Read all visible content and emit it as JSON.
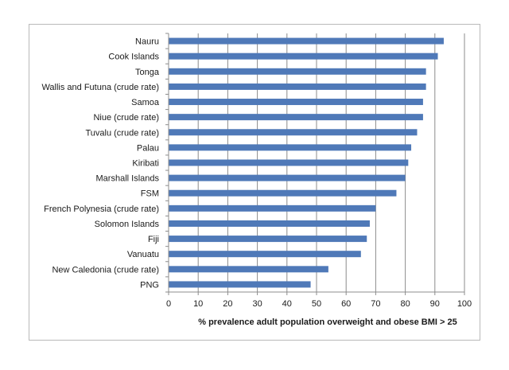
{
  "chart_data": {
    "type": "bar",
    "orientation": "horizontal",
    "categories": [
      "Nauru",
      "Cook Islands",
      "Tonga",
      "Wallis and Futuna (crude rate)",
      "Samoa",
      "Niue (crude rate)",
      "Tuvalu (crude rate)",
      "Palau",
      "Kiribati",
      "Marshall Islands",
      "FSM",
      "French Polynesia (crude rate)",
      "Solomon Islands",
      "Fiji",
      "Vanuatu",
      "New Caledonia (crude rate)",
      "PNG"
    ],
    "values": [
      93,
      91,
      87,
      87,
      86,
      86,
      84,
      82,
      81,
      80,
      77,
      70,
      68,
      67,
      65,
      54,
      48
    ],
    "title": "",
    "xlabel": "% prevalence adult population overweight and obese BMI > 25",
    "ylabel": "",
    "xlim": [
      0,
      100
    ],
    "xticks": [
      0,
      10,
      20,
      30,
      40,
      50,
      60,
      70,
      80,
      90,
      100
    ],
    "grid": "vertical",
    "legend": "none",
    "bar_color": "#4f79b8",
    "grid_color": "#8c8c8c",
    "axis_color": "#8c8c8c"
  }
}
